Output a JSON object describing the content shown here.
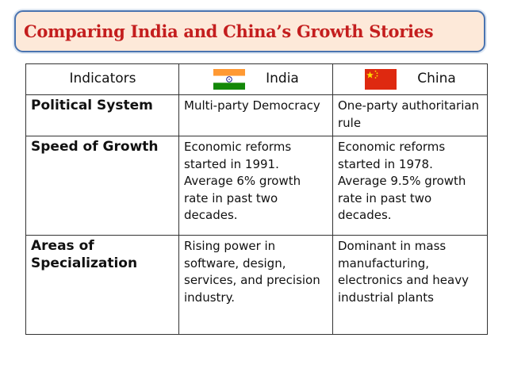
{
  "title": "Comparing India and China’s Growth Stories",
  "table": {
    "headers": {
      "indicators": "Indicators",
      "india": "India",
      "china": "China"
    },
    "flags": {
      "india": {
        "saffron": "#ff9933",
        "white": "#ffffff",
        "green": "#138808",
        "chakra": "#000080"
      },
      "china": {
        "red": "#de2910",
        "star": "#ffde00"
      }
    },
    "rows": [
      {
        "label": "Political System",
        "india": "Multi-party Democracy",
        "china": "One-party authoritarian rule"
      },
      {
        "label": "Speed of Growth",
        "india": "Economic reforms started in 1991. Average 6% growth rate in past two decades.",
        "china": "Economic reforms started in 1978. Average 9.5% growth rate in past two decades."
      },
      {
        "label": "Areas of Specialization",
        "india": "Rising power in software, design, services, and precision industry.",
        "china": "Dominant in mass manufacturing, electronics and heavy industrial plants"
      }
    ]
  }
}
